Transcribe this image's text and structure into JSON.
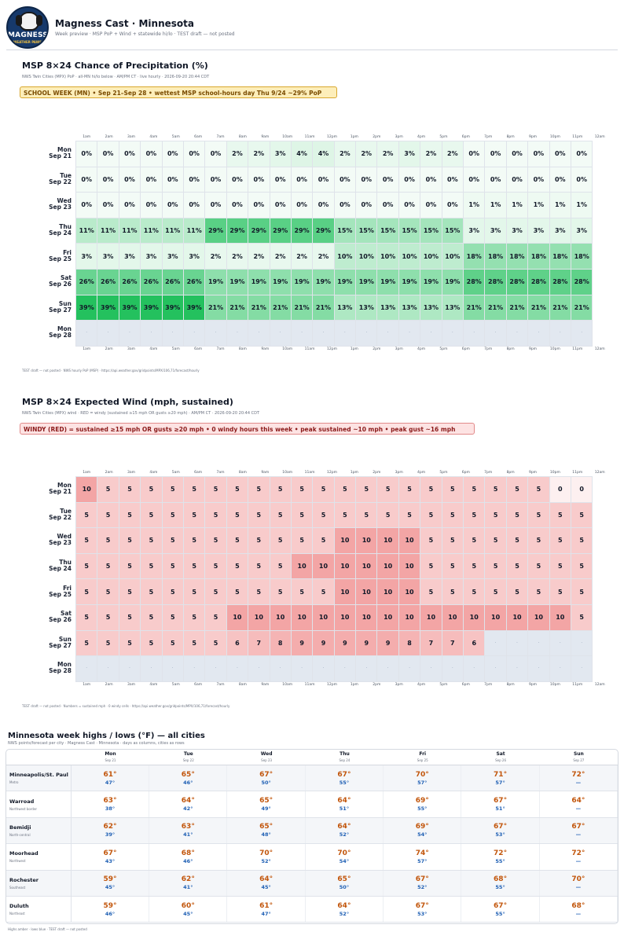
{
  "header": {
    "logo_text": "MAGNESS",
    "logo_subtext": "WEATHER PAWS",
    "title": "Magness Cast · Minnesota",
    "subtitle": "Week preview · MSP PoP + Wind + statewide hi/lo · TEST draft — not posted"
  },
  "pop": {
    "title": "MSP 8×24 Chance of Precipitation (%)",
    "meta": "NWS Twin Cities (MPX) PoP · all-MN hi/lo below · AM/PM CT · live hourly · 2026-09-20 20:44 CDT",
    "banner": "SCHOOL WEEK (MN)  •  Sep 21–Sep 28  •  wettest MSP school-hours day Thu 9/24 ~29% PoP",
    "footer": "TEST draft — not posted · NWS hourly PoP (MSP) · https://api.weather.gov/gridpoints/MPX/106,71/forecast/hourly"
  },
  "wind": {
    "title": "MSP 8×24 Expected Wind (mph, sustained)",
    "meta": "NWS Twin Cities (MPX) wind · RED = windy (sustained ≥15 mph OR gusts ≥20 mph) · AM/PM CT · 2026-09-20 20:44 CDT",
    "banner": "WINDY (RED) = sustained ≥15 mph OR gusts ≥20 mph  •  0 windy hours this week  •  peak sustained ~10 mph  •  peak gust ~16 mph",
    "footer": "TEST draft — not posted · Numbers = sustained mph · 0 windy cells · https://api.weather.gov/gridpoints/MPX/106,71/forecast/hourly"
  },
  "hours": [
    "1am",
    "2am",
    "3am",
    "4am",
    "5am",
    "6am",
    "7am",
    "8am",
    "9am",
    "10am",
    "11am",
    "12pm",
    "1pm",
    "2pm",
    "3pm",
    "4pm",
    "5pm",
    "6pm",
    "7pm",
    "8pm",
    "9pm",
    "10pm",
    "11pm",
    "12am"
  ],
  "days": [
    {
      "dow": "Mon",
      "date": "Sep 21"
    },
    {
      "dow": "Tue",
      "date": "Sep 22"
    },
    {
      "dow": "Wed",
      "date": "Sep 23"
    },
    {
      "dow": "Thu",
      "date": "Sep 24"
    },
    {
      "dow": "Fri",
      "date": "Sep 25"
    },
    {
      "dow": "Sat",
      "date": "Sep 26"
    },
    {
      "dow": "Sun",
      "date": "Sep 27"
    },
    {
      "dow": "Mon",
      "date": "Sep 28"
    }
  ],
  "missing_symbol": "·",
  "chart_data": [
    {
      "type": "heatmap",
      "title": "MSP 8×24 Chance of Precipitation (%)",
      "x": [
        "1am",
        "2am",
        "3am",
        "4am",
        "5am",
        "6am",
        "7am",
        "8am",
        "9am",
        "10am",
        "11am",
        "12pm",
        "1pm",
        "2pm",
        "3pm",
        "4pm",
        "5pm",
        "6pm",
        "7pm",
        "8pm",
        "9pm",
        "10pm",
        "11pm",
        "12am"
      ],
      "y": [
        "Mon Sep 21",
        "Tue Sep 22",
        "Wed Sep 23",
        "Thu Sep 24",
        "Fri Sep 25",
        "Sat Sep 26",
        "Sun Sep 27",
        "Mon Sep 28"
      ],
      "unit": "%",
      "values": [
        [
          0,
          0,
          0,
          0,
          0,
          0,
          0,
          2,
          2,
          3,
          4,
          4,
          2,
          2,
          2,
          3,
          2,
          2,
          0,
          0,
          0,
          0,
          0,
          0
        ],
        [
          0,
          0,
          0,
          0,
          0,
          0,
          0,
          0,
          0,
          0,
          0,
          0,
          0,
          0,
          0,
          0,
          0,
          0,
          0,
          0,
          0,
          0,
          0,
          0
        ],
        [
          0,
          0,
          0,
          0,
          0,
          0,
          0,
          0,
          0,
          0,
          0,
          0,
          0,
          0,
          0,
          0,
          0,
          0,
          1,
          1,
          1,
          1,
          1,
          1
        ],
        [
          11,
          11,
          11,
          11,
          11,
          11,
          29,
          29,
          29,
          29,
          29,
          29,
          15,
          15,
          15,
          15,
          15,
          15,
          3,
          3,
          3,
          3,
          3,
          3
        ],
        [
          3,
          3,
          3,
          3,
          3,
          3,
          2,
          2,
          2,
          2,
          2,
          2,
          10,
          10,
          10,
          10,
          10,
          10,
          18,
          18,
          18,
          18,
          18,
          18
        ],
        [
          26,
          26,
          26,
          26,
          26,
          26,
          19,
          19,
          19,
          19,
          19,
          19,
          19,
          19,
          19,
          19,
          19,
          19,
          28,
          28,
          28,
          28,
          28,
          28
        ],
        [
          39,
          39,
          39,
          39,
          39,
          39,
          21,
          21,
          21,
          21,
          21,
          21,
          13,
          13,
          13,
          13,
          13,
          13,
          21,
          21,
          21,
          21,
          21,
          21
        ],
        [
          null,
          null,
          null,
          null,
          null,
          null,
          null,
          null,
          null,
          null,
          null,
          null,
          null,
          null,
          null,
          null,
          null,
          null,
          null,
          null,
          null,
          null,
          null,
          null
        ]
      ],
      "color_scale": {
        "low": "#f3fbf6",
        "high": "#1fbf5a"
      }
    },
    {
      "type": "heatmap",
      "title": "MSP 8×24 Expected Wind (mph, sustained)",
      "x": [
        "1am",
        "2am",
        "3am",
        "4am",
        "5am",
        "6am",
        "7am",
        "8am",
        "9am",
        "10am",
        "11am",
        "12pm",
        "1pm",
        "2pm",
        "3pm",
        "4pm",
        "5pm",
        "6pm",
        "7pm",
        "8pm",
        "9pm",
        "10pm",
        "11pm",
        "12am"
      ],
      "y": [
        "Mon Sep 21",
        "Tue Sep 22",
        "Wed Sep 23",
        "Thu Sep 24",
        "Fri Sep 25",
        "Sat Sep 26",
        "Sun Sep 27",
        "Mon Sep 28"
      ],
      "unit": "mph",
      "values": [
        [
          10,
          5,
          5,
          5,
          5,
          5,
          5,
          5,
          5,
          5,
          5,
          5,
          5,
          5,
          5,
          5,
          5,
          5,
          5,
          5,
          5,
          5,
          0,
          0
        ],
        [
          5,
          5,
          5,
          5,
          5,
          5,
          5,
          5,
          5,
          5,
          5,
          5,
          5,
          5,
          5,
          5,
          5,
          5,
          5,
          5,
          5,
          5,
          5,
          5
        ],
        [
          5,
          5,
          5,
          5,
          5,
          5,
          5,
          5,
          5,
          5,
          5,
          5,
          10,
          10,
          10,
          10,
          5,
          5,
          5,
          5,
          5,
          5,
          5,
          5
        ],
        [
          5,
          5,
          5,
          5,
          5,
          5,
          5,
          5,
          5,
          5,
          10,
          10,
          10,
          10,
          10,
          10,
          5,
          5,
          5,
          5,
          5,
          5,
          5,
          5
        ],
        [
          5,
          5,
          5,
          5,
          5,
          5,
          5,
          5,
          5,
          5,
          5,
          5,
          10,
          10,
          10,
          10,
          5,
          5,
          5,
          5,
          5,
          5,
          5,
          5
        ],
        [
          5,
          5,
          5,
          5,
          5,
          5,
          5,
          10,
          10,
          10,
          10,
          10,
          10,
          10,
          10,
          10,
          10,
          10,
          10,
          10,
          10,
          10,
          10,
          5
        ],
        [
          5,
          5,
          5,
          5,
          5,
          5,
          5,
          6,
          7,
          8,
          9,
          9,
          9,
          9,
          9,
          8,
          7,
          7,
          6,
          null,
          null,
          null,
          null,
          null
        ],
        [
          null,
          null,
          null,
          null,
          null,
          null,
          null,
          null,
          null,
          null,
          null,
          null,
          null,
          null,
          null,
          null,
          null,
          null,
          null,
          null,
          null,
          null,
          null,
          null
        ]
      ],
      "color_scale": {
        "low": "#fdf0f0",
        "high": "#f3a5a5"
      }
    }
  ],
  "hilo": {
    "title": "Minnesota week highs / lows (°F) — all cities",
    "meta": "NWS points/forecast per city · Magness Cast · Minnesota · days as columns, cities as rows",
    "footer": "Highs amber · lows blue · TEST draft — not posted",
    "days": [
      {
        "dow": "Mon",
        "date": "Sep 21"
      },
      {
        "dow": "Tue",
        "date": "Sep 22"
      },
      {
        "dow": "Wed",
        "date": "Sep 23"
      },
      {
        "dow": "Thu",
        "date": "Sep 24"
      },
      {
        "dow": "Fri",
        "date": "Sep 25"
      },
      {
        "dow": "Sat",
        "date": "Sep 26"
      },
      {
        "dow": "Sun",
        "date": "Sep 27"
      }
    ],
    "cities": [
      {
        "name": "Minneapolis/St. Paul",
        "region": "Metro",
        "highs": [
          "61°",
          "65°",
          "67°",
          "67°",
          "70°",
          "71°",
          "72°"
        ],
        "lows": [
          "47°",
          "46°",
          "50°",
          "55°",
          "57°",
          "57°",
          "—"
        ]
      },
      {
        "name": "Warroad",
        "region": "Northwest border",
        "highs": [
          "63°",
          "64°",
          "65°",
          "64°",
          "69°",
          "67°",
          "64°"
        ],
        "lows": [
          "38°",
          "42°",
          "49°",
          "51°",
          "55°",
          "51°",
          "—"
        ]
      },
      {
        "name": "Bemidji",
        "region": "North-central",
        "highs": [
          "62°",
          "63°",
          "65°",
          "64°",
          "69°",
          "67°",
          "67°"
        ],
        "lows": [
          "39°",
          "41°",
          "48°",
          "52°",
          "54°",
          "53°",
          "—"
        ]
      },
      {
        "name": "Moorhead",
        "region": "Northwest",
        "highs": [
          "67°",
          "68°",
          "70°",
          "70°",
          "74°",
          "72°",
          "72°"
        ],
        "lows": [
          "43°",
          "46°",
          "52°",
          "54°",
          "57°",
          "55°",
          "—"
        ]
      },
      {
        "name": "Rochester",
        "region": "Southeast",
        "highs": [
          "59°",
          "62°",
          "64°",
          "65°",
          "67°",
          "68°",
          "70°"
        ],
        "lows": [
          "45°",
          "41°",
          "45°",
          "50°",
          "52°",
          "55°",
          "—"
        ]
      },
      {
        "name": "Duluth",
        "region": "Northeast",
        "highs": [
          "59°",
          "60°",
          "61°",
          "64°",
          "67°",
          "67°",
          "68°"
        ],
        "lows": [
          "46°",
          "45°",
          "47°",
          "52°",
          "53°",
          "55°",
          "—"
        ]
      }
    ]
  }
}
